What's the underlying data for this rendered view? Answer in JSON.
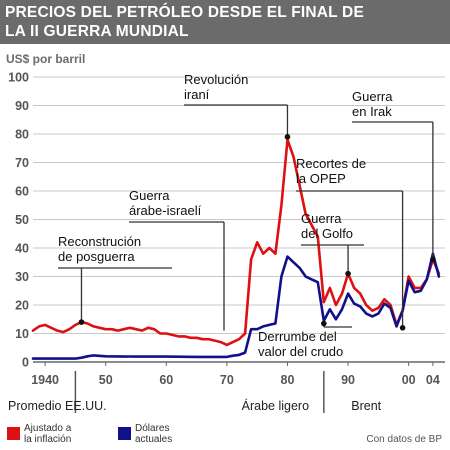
{
  "title": "PRECIOS DEL PETRÓLEO DESDE EL FINAL DE\nLA II GUERRA MUNDIAL",
  "source": "Con datos de BP",
  "colors": {
    "header_bg": "#6b6b6b",
    "adjusted": "#dd1111",
    "nominal": "#10108a",
    "grid": "#c8c8c8",
    "axis": "#666666",
    "annotation_line": "#333333"
  },
  "chart_data": {
    "type": "line",
    "ylabel": "US$ por barril",
    "ylim": [
      0,
      100
    ],
    "y_ticks": [
      0,
      10,
      20,
      30,
      40,
      50,
      60,
      70,
      80,
      90,
      100
    ],
    "xlim": [
      1938,
      2006
    ],
    "x_ticks": [
      {
        "value": 1940,
        "label": "1940"
      },
      {
        "value": 1950,
        "label": "50"
      },
      {
        "value": 1960,
        "label": "60"
      },
      {
        "value": 1970,
        "label": "70"
      },
      {
        "value": 1980,
        "label": "80"
      },
      {
        "value": 1990,
        "label": "90"
      },
      {
        "value": 2000,
        "label": "00"
      },
      {
        "value": 2004,
        "label": "04"
      }
    ],
    "grid": true,
    "legend_position": "bottom-left",
    "series": [
      {
        "name": "Ajustado a la inflación",
        "color": "#dd1111",
        "points": [
          [
            1938,
            11
          ],
          [
            1939,
            12.5
          ],
          [
            1940,
            13
          ],
          [
            1941,
            12
          ],
          [
            1942,
            11
          ],
          [
            1943,
            10.5
          ],
          [
            1944,
            11.5
          ],
          [
            1945,
            13
          ],
          [
            1946,
            14
          ],
          [
            1947,
            13.5
          ],
          [
            1948,
            12.5
          ],
          [
            1949,
            12
          ],
          [
            1950,
            11.5
          ],
          [
            1951,
            11.5
          ],
          [
            1952,
            11
          ],
          [
            1953,
            11.5
          ],
          [
            1954,
            12
          ],
          [
            1955,
            11.5
          ],
          [
            1956,
            11
          ],
          [
            1957,
            12
          ],
          [
            1958,
            11.5
          ],
          [
            1959,
            10
          ],
          [
            1960,
            10
          ],
          [
            1961,
            9.5
          ],
          [
            1962,
            9
          ],
          [
            1963,
            9
          ],
          [
            1964,
            8.5
          ],
          [
            1965,
            8.5
          ],
          [
            1966,
            8
          ],
          [
            1967,
            8
          ],
          [
            1968,
            7.5
          ],
          [
            1969,
            7
          ],
          [
            1970,
            6
          ],
          [
            1971,
            7
          ],
          [
            1972,
            8
          ],
          [
            1973,
            10
          ],
          [
            1974,
            36
          ],
          [
            1975,
            42
          ],
          [
            1976,
            38
          ],
          [
            1977,
            40
          ],
          [
            1978,
            38
          ],
          [
            1979,
            55
          ],
          [
            1980,
            78
          ],
          [
            1981,
            72
          ],
          [
            1982,
            62
          ],
          [
            1983,
            52
          ],
          [
            1984,
            48
          ],
          [
            1985,
            44
          ],
          [
            1986,
            21
          ],
          [
            1987,
            26
          ],
          [
            1988,
            20
          ],
          [
            1989,
            24
          ],
          [
            1990,
            31
          ],
          [
            1991,
            26
          ],
          [
            1992,
            24
          ],
          [
            1993,
            20
          ],
          [
            1994,
            18
          ],
          [
            1995,
            19
          ],
          [
            1996,
            22
          ],
          [
            1997,
            20
          ],
          [
            1998,
            13
          ],
          [
            1999,
            18
          ],
          [
            2000,
            30
          ],
          [
            2001,
            26
          ],
          [
            2002,
            26
          ],
          [
            2003,
            29
          ],
          [
            2004,
            36
          ],
          [
            2005,
            31
          ]
        ]
      },
      {
        "name": "Dólares actuales",
        "color": "#10108a",
        "points": [
          [
            1938,
            1.2
          ],
          [
            1940,
            1.2
          ],
          [
            1945,
            1.2
          ],
          [
            1946,
            1.5
          ],
          [
            1947,
            2
          ],
          [
            1948,
            2.3
          ],
          [
            1950,
            2
          ],
          [
            1955,
            1.9
          ],
          [
            1960,
            1.9
          ],
          [
            1965,
            1.8
          ],
          [
            1970,
            1.8
          ],
          [
            1971,
            2.2
          ],
          [
            1972,
            2.5
          ],
          [
            1973,
            3.3
          ],
          [
            1974,
            11.5
          ],
          [
            1975,
            11.5
          ],
          [
            1976,
            12.5
          ],
          [
            1977,
            13
          ],
          [
            1978,
            13.5
          ],
          [
            1979,
            30
          ],
          [
            1980,
            37
          ],
          [
            1981,
            35
          ],
          [
            1982,
            33
          ],
          [
            1983,
            30
          ],
          [
            1984,
            29
          ],
          [
            1985,
            28
          ],
          [
            1986,
            14.5
          ],
          [
            1987,
            18.5
          ],
          [
            1988,
            15
          ],
          [
            1989,
            18.5
          ],
          [
            1990,
            24
          ],
          [
            1991,
            20.5
          ],
          [
            1992,
            19.5
          ],
          [
            1993,
            17
          ],
          [
            1994,
            16
          ],
          [
            1995,
            17
          ],
          [
            1996,
            20.5
          ],
          [
            1997,
            19
          ],
          [
            1998,
            12.5
          ],
          [
            1999,
            18
          ],
          [
            2000,
            28.5
          ],
          [
            2001,
            24.5
          ],
          [
            2002,
            25
          ],
          [
            2003,
            29
          ],
          [
            2004,
            38
          ],
          [
            2005,
            30
          ]
        ]
      }
    ],
    "annotations": [
      {
        "text": "Reconstrución\nde posguerra",
        "x": 1946,
        "y": 14
      },
      {
        "text": "Guerra\nárabe-israelí",
        "x": 1973,
        "y": null
      },
      {
        "text": "Revolución\niraní",
        "x": 1980,
        "y": 79
      },
      {
        "text": "Guerra\ndel Golfo",
        "x": 1990,
        "y": 31
      },
      {
        "text": "Recortes de\nla OPEP",
        "x": 1999,
        "y": 12
      },
      {
        "text": "Guerra\nen Irak",
        "x": 2004,
        "y": 36
      },
      {
        "text": "Derrumbe del\nvalor del crudo",
        "x": 1986,
        "y": 14
      }
    ],
    "periods": [
      {
        "label": "Promedio EE.UU.",
        "from": 1938,
        "to": 1945
      },
      {
        "label": "Árabe ligero",
        "from": 1945,
        "to": 1986
      },
      {
        "label": "Brent",
        "from": 1986,
        "to": 2006
      }
    ]
  },
  "legend": [
    {
      "label": "Ajustado a\nla inflación",
      "color": "#dd1111"
    },
    {
      "label": "Dólares\nactuales",
      "color": "#10108a"
    }
  ]
}
